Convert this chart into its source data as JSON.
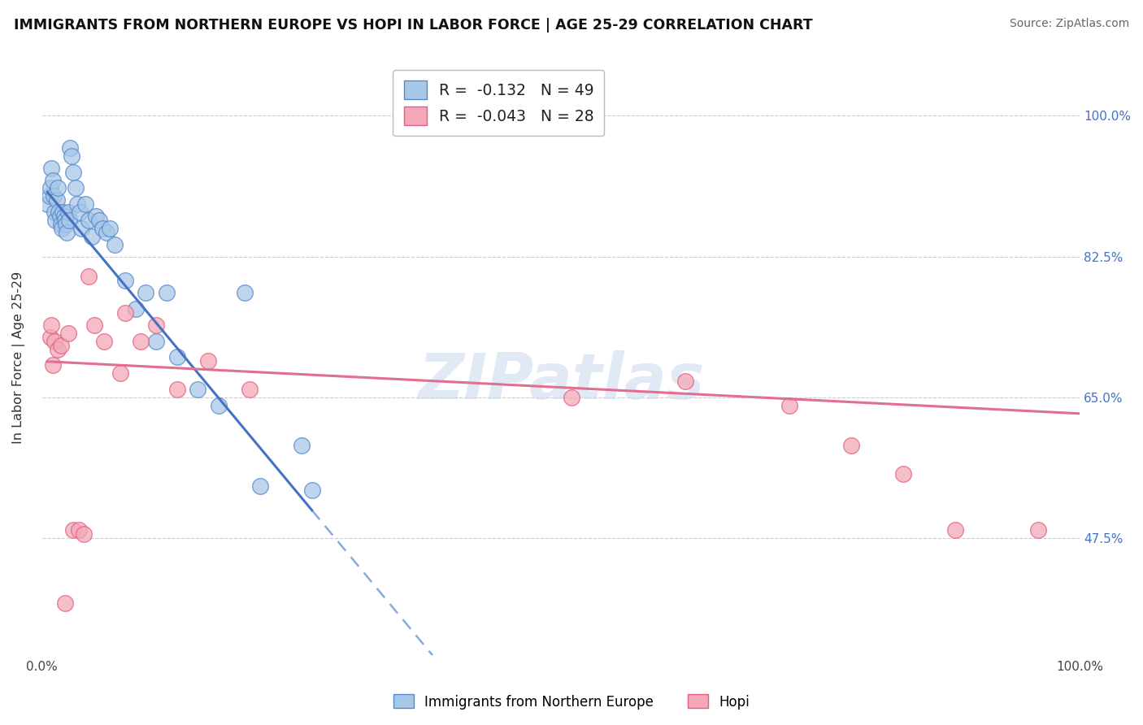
{
  "title": "IMMIGRANTS FROM NORTHERN EUROPE VS HOPI IN LABOR FORCE | AGE 25-29 CORRELATION CHART",
  "source": "Source: ZipAtlas.com",
  "ylabel": "In Labor Force | Age 25-29",
  "legend_label_blue": "Immigrants from Northern Europe",
  "legend_label_pink": "Hopi",
  "R_blue": -0.132,
  "N_blue": 49,
  "R_pink": -0.043,
  "N_pink": 28,
  "xlim": [
    0.0,
    1.0
  ],
  "ylim": [
    0.33,
    1.07
  ],
  "yticks": [
    0.475,
    0.65,
    0.825,
    1.0
  ],
  "ytick_labels": [
    "47.5%",
    "65.0%",
    "82.5%",
    "100.0%"
  ],
  "xticks": [
    0.0,
    0.25,
    0.5,
    0.75,
    1.0
  ],
  "xtick_labels": [
    "0.0%",
    "",
    "",
    "",
    "100.0%"
  ],
  "color_blue": "#a8c8e8",
  "color_pink": "#f4a8b8",
  "edge_blue": "#5588cc",
  "edge_pink": "#e06080",
  "trend_blue": "#4472c4",
  "trend_pink": "#e07090",
  "trend_dashed_color": "#88aadd",
  "blue_x": [
    0.005,
    0.007,
    0.008,
    0.009,
    0.01,
    0.011,
    0.012,
    0.013,
    0.014,
    0.015,
    0.016,
    0.017,
    0.018,
    0.019,
    0.02,
    0.021,
    0.022,
    0.023,
    0.024,
    0.025,
    0.026,
    0.027,
    0.028,
    0.03,
    0.032,
    0.034,
    0.036,
    0.038,
    0.042,
    0.045,
    0.048,
    0.052,
    0.055,
    0.058,
    0.062,
    0.065,
    0.07,
    0.08,
    0.09,
    0.1,
    0.11,
    0.12,
    0.13,
    0.15,
    0.17,
    0.195,
    0.21,
    0.25,
    0.26
  ],
  "blue_y": [
    0.89,
    0.9,
    0.91,
    0.935,
    0.92,
    0.9,
    0.88,
    0.87,
    0.895,
    0.91,
    0.88,
    0.875,
    0.865,
    0.86,
    0.88,
    0.875,
    0.87,
    0.865,
    0.855,
    0.88,
    0.87,
    0.96,
    0.95,
    0.93,
    0.91,
    0.89,
    0.88,
    0.86,
    0.89,
    0.87,
    0.85,
    0.875,
    0.87,
    0.86,
    0.855,
    0.86,
    0.84,
    0.795,
    0.76,
    0.78,
    0.72,
    0.78,
    0.7,
    0.66,
    0.64,
    0.78,
    0.54,
    0.59,
    0.535
  ],
  "pink_x": [
    0.008,
    0.009,
    0.01,
    0.012,
    0.015,
    0.018,
    0.022,
    0.025,
    0.03,
    0.035,
    0.04,
    0.045,
    0.05,
    0.06,
    0.075,
    0.08,
    0.095,
    0.11,
    0.13,
    0.16,
    0.2,
    0.51,
    0.62,
    0.72,
    0.78,
    0.83,
    0.88,
    0.96
  ],
  "pink_y": [
    0.725,
    0.74,
    0.69,
    0.72,
    0.71,
    0.715,
    0.395,
    0.73,
    0.485,
    0.485,
    0.48,
    0.8,
    0.74,
    0.72,
    0.68,
    0.755,
    0.72,
    0.74,
    0.66,
    0.695,
    0.66,
    0.65,
    0.67,
    0.64,
    0.59,
    0.555,
    0.485,
    0.485
  ],
  "blue_line_xrange": [
    0.005,
    0.26
  ],
  "dashed_line_xrange": [
    0.26,
    1.0
  ],
  "pink_line_xrange": [
    0.005,
    1.0
  ],
  "blue_intercept": 0.913,
  "blue_slope": -1.55,
  "pink_intercept": 0.695,
  "pink_slope": -0.065
}
